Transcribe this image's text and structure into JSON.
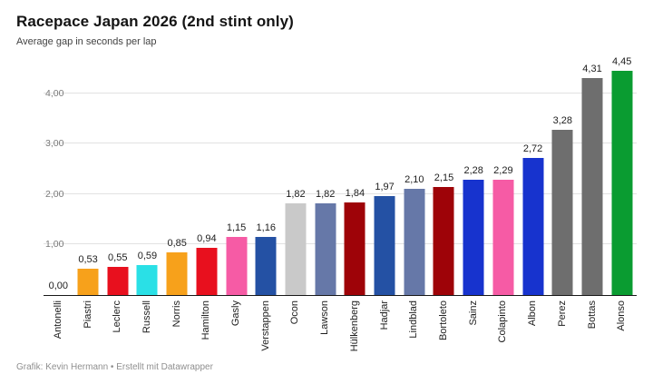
{
  "header": {
    "title": "Racepace Japan 2026 (2nd stint only)",
    "subtitle": "Average gap in seconds per lap"
  },
  "footer": {
    "credit": "Grafik: Kevin Hermann • Erstellt mit Datawrapper"
  },
  "colors": {
    "background": "#ffffff",
    "axis_line": "#191919",
    "gridline": "#e2e2e2",
    "tick_text": "#7a7a7a",
    "value_text": "#1d1d1d",
    "footer_text": "#8f8f8f"
  },
  "chart_data": {
    "type": "bar",
    "title": "Racepace Japan 2026 (2nd stint only)",
    "subtitle": "Average gap in seconds per lap",
    "xlabel": "",
    "ylabel": "Average gap in seconds per lap",
    "ylim": [
      0,
      4.5
    ],
    "grid": "horizontal",
    "legend": "none",
    "decimal_separator": ",",
    "categories": [
      "Antonelli",
      "Piastri",
      "Leclerc",
      "Russell",
      "Norris",
      "Hamilton",
      "Gasly",
      "Verstappen",
      "Ocon",
      "Lawson",
      "Hülkenberg",
      "Hadjar",
      "Lindblad",
      "Bortoleto",
      "Sainz",
      "Colapinto",
      "Albon",
      "Perez",
      "Bottas",
      "Alonso"
    ],
    "values": [
      0.0,
      0.53,
      0.55,
      0.59,
      0.85,
      0.94,
      1.15,
      1.16,
      1.82,
      1.82,
      1.84,
      1.97,
      2.1,
      2.15,
      2.28,
      2.29,
      2.72,
      3.28,
      4.31,
      4.45
    ],
    "value_labels": [
      "0,00",
      "0,53",
      "0,55",
      "0,59",
      "0,85",
      "0,94",
      "1,15",
      "1,16",
      "1,82",
      "1,82",
      "1,84",
      "1,97",
      "2,10",
      "2,15",
      "2,28",
      "2,29",
      "2,72",
      "3,28",
      "4,31",
      "4,45"
    ],
    "bar_colors": [
      "#2ae0e6",
      "#f7a11b",
      "#e8101e",
      "#2ae0e6",
      "#f7a11b",
      "#e8101e",
      "#f65ba5",
      "#2451a4",
      "#c9c9c9",
      "#6678a8",
      "#9e0308",
      "#2451a4",
      "#6678a8",
      "#9e0308",
      "#1733ce",
      "#f65ba5",
      "#1733ce",
      "#6e6e6e",
      "#6e6e6e",
      "#0a9c31"
    ],
    "yticks": [
      {
        "value": 1,
        "label": "1,00"
      },
      {
        "value": 2,
        "label": "2,00"
      },
      {
        "value": 3,
        "label": "3,00"
      },
      {
        "value": 4,
        "label": "4,00"
      }
    ]
  }
}
